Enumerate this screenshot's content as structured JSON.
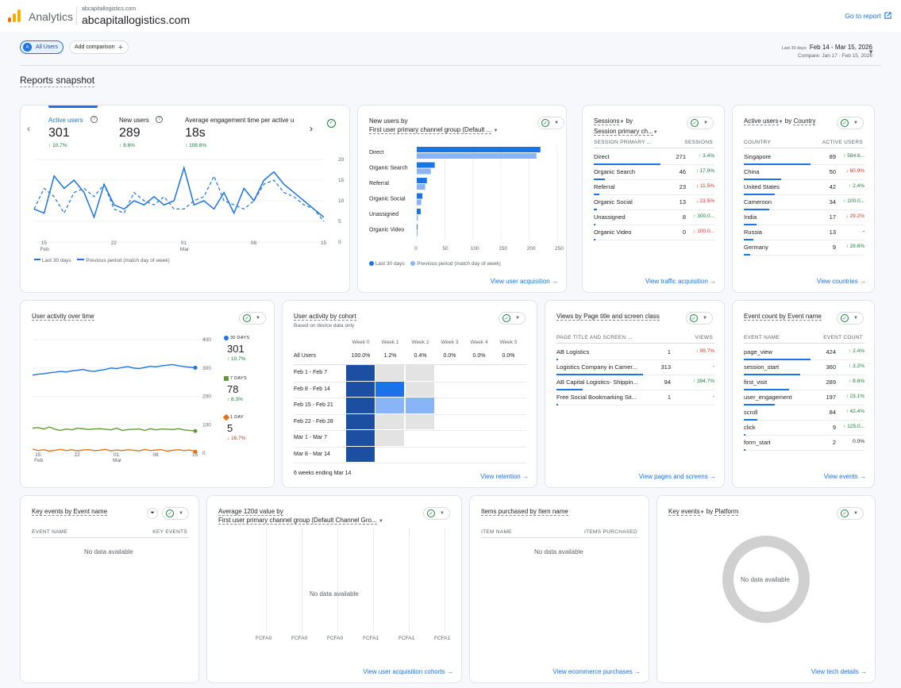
{
  "header": {
    "app_name": "Analytics",
    "account_small": "abcapitallogistics.com",
    "account": "abcapitallogistics.com",
    "go_to_report": "Go to report"
  },
  "toolbar": {
    "all_users_avatar": "A",
    "all_users": "All Users",
    "add_comparison": "Add comparison",
    "date_preset": "Last 30 days",
    "date_range": "Feb 14 - Mar 15, 2026",
    "compare_range": "Compare: Jan 17 - Feb 15, 2026"
  },
  "page_title": "Reports snapshot",
  "overview": {
    "metrics": [
      {
        "label": "Active users",
        "value": "301",
        "change": "10.7%"
      },
      {
        "label": "New users",
        "value": "289",
        "change": "8.6%"
      },
      {
        "label": "Average engagement time per active u",
        "value": "18s",
        "change": "108.6%"
      }
    ],
    "y_ticks": [
      "20",
      "15",
      "10",
      "5",
      "0"
    ],
    "x_ticks": [
      {
        "d": "15",
        "m": "Feb"
      },
      {
        "d": "22",
        "m": ""
      },
      {
        "d": "01",
        "m": "Mar"
      },
      {
        "d": "08",
        "m": ""
      },
      {
        "d": "15",
        "m": ""
      }
    ],
    "legend_current": "Last 30 days",
    "legend_previous": "Previous period (match day of week)"
  },
  "new_users_channel": {
    "title_prefix": "New users by",
    "title_dim": "First user primary channel group (Default ...",
    "categories": [
      "Direct",
      "Organic Search",
      "Referral",
      "Organic Social",
      "Unassigned",
      "Organic Video"
    ],
    "x_ticks": [
      "0",
      "50",
      "100",
      "150",
      "200",
      "250"
    ],
    "legend_current": "Last 30 days",
    "legend_previous": "Previous period (match day of week)",
    "link": "View user acquisition"
  },
  "sessions": {
    "title_metric": "Sessions",
    "title_by": "by",
    "title_dim": "Session primary ch...",
    "col1": "SESSION PRIMARY ...",
    "col2": "SESSIONS",
    "rows": [
      {
        "name": "Direct",
        "value": "271",
        "change": "3.4%",
        "dir": "up"
      },
      {
        "name": "Organic Search",
        "value": "46",
        "change": "17.9%",
        "dir": "up"
      },
      {
        "name": "Referral",
        "value": "23",
        "change": "11.5%",
        "dir": "dn"
      },
      {
        "name": "Organic Social",
        "value": "13",
        "change": "23.5%",
        "dir": "dn"
      },
      {
        "name": "Unassigned",
        "value": "8",
        "change": "300.0...",
        "dir": "up"
      },
      {
        "name": "Organic Video",
        "value": "0",
        "change": "100.0...",
        "dir": "dn"
      }
    ],
    "link": "View traffic acquisition"
  },
  "countries": {
    "title_metric": "Active users",
    "title_by": "by",
    "title_dim": "Country",
    "col1": "COUNTRY",
    "col2": "ACTIVE USERS",
    "rows": [
      {
        "name": "Singapore",
        "value": "89",
        "change": "584.6...",
        "dir": "up"
      },
      {
        "name": "China",
        "value": "50",
        "change": "60.9%",
        "dir": "dn"
      },
      {
        "name": "United States",
        "value": "42",
        "change": "2.4%",
        "dir": "up"
      },
      {
        "name": "Cameroon",
        "value": "34",
        "change": "100.0...",
        "dir": "up"
      },
      {
        "name": "India",
        "value": "17",
        "change": "29.2%",
        "dir": "dn"
      },
      {
        "name": "Russia",
        "value": "13",
        "change": "-",
        "dir": "none"
      },
      {
        "name": "Germany",
        "value": "9",
        "change": "28.6%",
        "dir": "up"
      }
    ],
    "link": "View countries"
  },
  "user_activity": {
    "title": "User activity over time",
    "y_ticks": [
      "400",
      "300",
      "200",
      "100",
      "0"
    ],
    "x_ticks": [
      {
        "d": "15",
        "m": "Feb"
      },
      {
        "d": "22",
        "m": ""
      },
      {
        "d": "01",
        "m": "Mar"
      },
      {
        "d": "08",
        "m": ""
      },
      {
        "d": "15",
        "m": ""
      }
    ],
    "series": [
      {
        "label": "30 DAYS",
        "value": "301",
        "change": "10.7%",
        "dir": "up",
        "color": "#1a73e8"
      },
      {
        "label": "7 DAYS",
        "value": "78",
        "change": "8.3%",
        "dir": "up",
        "color": "#5f9c33"
      },
      {
        "label": "1 DAY",
        "value": "5",
        "change": "16.7%",
        "dir": "dn",
        "color": "#e8710a"
      }
    ]
  },
  "cohort": {
    "title": "User activity by cohort",
    "subtitle": "Based on device data only",
    "weeks": [
      "Week 0",
      "Week 1",
      "Week 2",
      "Week 3",
      "Week 4",
      "Week 5"
    ],
    "all_users_label": "All Users",
    "all_users": [
      "100.0%",
      "1.2%",
      "0.4%",
      "0.0%",
      "0.0%",
      "0.0%"
    ],
    "rows": [
      "Feb 1 - Feb 7",
      "Feb 8 - Feb 14",
      "Feb 15 - Feb 21",
      "Feb 22 - Feb 28",
      "Mar 1 - Mar 7",
      "Mar 8 - Mar 14"
    ],
    "footnote": "6 weeks ending Mar 14",
    "link": "View retention"
  },
  "views": {
    "title": "Views by Page title and screen class",
    "col1": "PAGE TITLE AND SCREEN ...",
    "col2": "VIEWS",
    "rows": [
      {
        "name": "AB Logistics",
        "value": "1",
        "change": "99.7%",
        "dir": "dn"
      },
      {
        "name": "Logistics Company in Camer...",
        "value": "313",
        "change": "-",
        "dir": "none"
      },
      {
        "name": "AB Capital Logistics- Shippin...",
        "value": "94",
        "change": "394.7%",
        "dir": "up"
      },
      {
        "name": "Free Social Bookmarking Sit...",
        "value": "1",
        "change": "-",
        "dir": "none"
      }
    ],
    "link": "View pages and screens"
  },
  "events": {
    "title": "Event count by Event name",
    "col1": "EVENT NAME",
    "col2": "EVENT COUNT",
    "rows": [
      {
        "name": "page_view",
        "value": "424",
        "change": "2.4%",
        "dir": "up"
      },
      {
        "name": "session_start",
        "value": "360",
        "change": "3.2%",
        "dir": "up"
      },
      {
        "name": "first_visit",
        "value": "289",
        "change": "8.6%",
        "dir": "up"
      },
      {
        "name": "user_engagement",
        "value": "197",
        "change": "23.1%",
        "dir": "up"
      },
      {
        "name": "scroll",
        "value": "84",
        "change": "42.4%",
        "dir": "up"
      },
      {
        "name": "click",
        "value": "9",
        "change": "125.0...",
        "dir": "up"
      },
      {
        "name": "form_start",
        "value": "2",
        "change": "0.0%",
        "dir": "none"
      }
    ],
    "link": "View events"
  },
  "key_events": {
    "title": "Key events by Event name",
    "col1": "EVENT NAME",
    "col2": "KEY EVENTS",
    "no_data": "No data available"
  },
  "ltv": {
    "title": "Average 120d value by",
    "title_dim": "First user primary channel group (Default Channel Gro...",
    "no_data": "No data available",
    "x_labels": [
      "FCFA0",
      "FCFA0",
      "FCFA0",
      "FCFA1",
      "FCFA1",
      "FCFA1"
    ],
    "link": "View user acquisition cohorts"
  },
  "items": {
    "title": "Items purchased by Item name",
    "col1": "ITEM NAME",
    "col2": "ITEMS PURCHASED",
    "no_data": "No data available",
    "link": "View ecommerce purchases"
  },
  "platform": {
    "title_metric": "Key events",
    "title_by": "by",
    "title_dim": "Platform",
    "no_data": "No data available",
    "link": "View tech details"
  },
  "chart_data": [
    {
      "type": "line",
      "title": "Active users",
      "x": [
        "Feb 14",
        "Feb 15",
        "Feb 16",
        "Feb 17",
        "Feb 18",
        "Feb 19",
        "Feb 20",
        "Feb 21",
        "Feb 22",
        "Feb 23",
        "Feb 24",
        "Feb 25",
        "Feb 26",
        "Feb 27",
        "Feb 28",
        "Mar 1",
        "Mar 2",
        "Mar 3",
        "Mar 4",
        "Mar 5",
        "Mar 6",
        "Mar 7",
        "Mar 8",
        "Mar 9",
        "Mar 10",
        "Mar 11",
        "Mar 12",
        "Mar 13",
        "Mar 14",
        "Mar 15"
      ],
      "series": [
        {
          "name": "Last 30 days",
          "values": [
            8,
            7,
            16,
            13,
            15,
            12,
            6,
            14,
            9,
            8,
            10,
            9,
            11,
            9,
            10,
            18,
            9,
            10,
            8,
            12,
            7,
            13,
            10,
            15,
            17,
            14,
            12,
            10,
            8,
            6
          ]
        },
        {
          "name": "Previous period (match day of week)",
          "values": [
            8,
            13,
            11,
            7,
            12,
            13,
            11,
            14,
            8,
            7,
            12,
            10,
            9,
            11,
            8,
            8,
            10,
            11,
            16,
            10,
            9,
            8,
            10,
            14,
            15,
            12,
            11,
            9,
            8,
            5
          ]
        }
      ],
      "ylim": [
        0,
        20
      ]
    },
    {
      "type": "bar",
      "title": "New users by First user primary channel group",
      "categories": [
        "Direct",
        "Organic Search",
        "Referral",
        "Organic Social",
        "Unassigned",
        "Organic Video"
      ],
      "series": [
        {
          "name": "Last 30 days",
          "values": [
            220,
            32,
            18,
            10,
            7,
            1
          ]
        },
        {
          "name": "Previous period (match day of week)",
          "values": [
            213,
            25,
            15,
            8,
            2,
            1
          ]
        }
      ],
      "xlim": [
        0,
        250
      ]
    },
    {
      "type": "line",
      "title": "User activity over time",
      "x": [
        "Feb 14",
        "Feb 15",
        "Feb 16",
        "Feb 17",
        "Feb 18",
        "Feb 19",
        "Feb 20",
        "Feb 21",
        "Feb 22",
        "Feb 23",
        "Feb 24",
        "Feb 25",
        "Feb 26",
        "Feb 27",
        "Feb 28",
        "Mar 1",
        "Mar 2",
        "Mar 3",
        "Mar 4",
        "Mar 5",
        "Mar 6",
        "Mar 7",
        "Mar 8",
        "Mar 9",
        "Mar 10",
        "Mar 11",
        "Mar 12",
        "Mar 13",
        "Mar 14",
        "Mar 15"
      ],
      "series": [
        {
          "name": "30 DAYS",
          "values": [
            275,
            278,
            280,
            283,
            285,
            288,
            286,
            290,
            292,
            295,
            290,
            288,
            292,
            295,
            300,
            298,
            302,
            305,
            300,
            298,
            302,
            306,
            304,
            308,
            310,
            312,
            308,
            305,
            303,
            301
          ]
        },
        {
          "name": "7 DAYS",
          "values": [
            88,
            90,
            85,
            92,
            84,
            80,
            85,
            82,
            88,
            86,
            83,
            85,
            86,
            84,
            82,
            88,
            80,
            83,
            84,
            85,
            80,
            86,
            82,
            85,
            84,
            83,
            86,
            82,
            80,
            78
          ]
        },
        {
          "name": "1 DAY",
          "values": [
            14,
            9,
            12,
            7,
            10,
            13,
            9,
            12,
            8,
            11,
            12,
            9,
            10,
            13,
            8,
            11,
            9,
            12,
            10,
            8,
            13,
            9,
            11,
            12,
            7,
            10,
            12,
            9,
            11,
            5
          ]
        }
      ],
      "ylim": [
        0,
        400
      ]
    },
    {
      "type": "heatmap",
      "title": "User activity by cohort",
      "columns": [
        "Week 0",
        "Week 1",
        "Week 2",
        "Week 3",
        "Week 4",
        "Week 5"
      ],
      "rows": [
        "Feb 1 - Feb 7",
        "Feb 8 - Feb 14",
        "Feb 15 - Feb 21",
        "Feb 22 - Feb 28",
        "Mar 1 - Mar 7",
        "Mar 8 - Mar 14"
      ],
      "levels": [
        [
          1.0,
          0.0,
          0.0,
          null,
          null,
          null
        ],
        [
          1.0,
          0.7,
          0.0,
          null,
          null,
          null
        ],
        [
          1.0,
          0.35,
          0.35,
          null,
          null,
          null
        ],
        [
          1.0,
          0.0,
          0.0,
          null,
          null,
          null
        ],
        [
          1.0,
          0.0,
          null,
          null,
          null,
          null
        ],
        [
          1.0,
          null,
          null,
          null,
          null,
          null
        ]
      ]
    }
  ]
}
